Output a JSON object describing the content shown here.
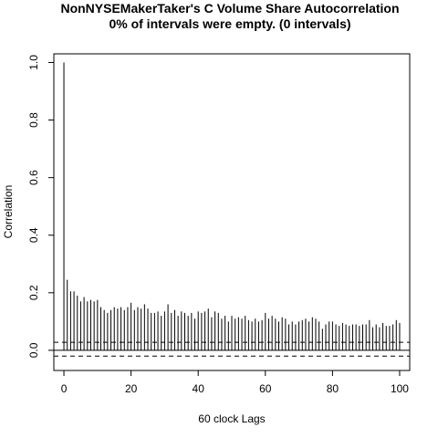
{
  "chart_data": {
    "type": "bar",
    "title": "NonNYSEMakerTaker's C Volume Share Autocorrelation",
    "subtitle": "0% of intervals were empty. (0 intervals)",
    "xlabel": "60 clock Lags",
    "ylabel": "Correlation",
    "xlim": [
      -3,
      103
    ],
    "ylim": [
      -0.07,
      1.03
    ],
    "x_ticks": [
      0,
      20,
      40,
      60,
      80,
      100
    ],
    "y_ticks": [
      0.0,
      0.2,
      0.4,
      0.6,
      0.8,
      1.0
    ],
    "x_tick_labels": [
      "0",
      "20",
      "40",
      "60",
      "80",
      "100"
    ],
    "y_tick_labels": [
      "0.0",
      "0.2",
      "0.4",
      "0.6",
      "0.8",
      "1.0"
    ],
    "confidence_band": [
      0.028,
      -0.02
    ],
    "lags": [
      0,
      1,
      2,
      3,
      4,
      5,
      6,
      7,
      8,
      9,
      10,
      11,
      12,
      13,
      14,
      15,
      16,
      17,
      18,
      19,
      20,
      21,
      22,
      23,
      24,
      25,
      26,
      27,
      28,
      29,
      30,
      31,
      32,
      33,
      34,
      35,
      36,
      37,
      38,
      39,
      40,
      41,
      42,
      43,
      44,
      45,
      46,
      47,
      48,
      49,
      50,
      51,
      52,
      53,
      54,
      55,
      56,
      57,
      58,
      59,
      60,
      61,
      62,
      63,
      64,
      65,
      66,
      67,
      68,
      69,
      70,
      71,
      72,
      73,
      74,
      75,
      76,
      77,
      78,
      79,
      80,
      81,
      82,
      83,
      84,
      85,
      86,
      87,
      88,
      89,
      90,
      91,
      92,
      93,
      94,
      95,
      96,
      97,
      98,
      99,
      100
    ],
    "values": [
      1.0,
      0.245,
      0.205,
      0.205,
      0.19,
      0.17,
      0.185,
      0.17,
      0.175,
      0.17,
      0.175,
      0.15,
      0.14,
      0.13,
      0.14,
      0.15,
      0.145,
      0.15,
      0.14,
      0.15,
      0.165,
      0.14,
      0.15,
      0.145,
      0.16,
      0.145,
      0.13,
      0.13,
      0.135,
      0.12,
      0.135,
      0.16,
      0.13,
      0.14,
      0.12,
      0.135,
      0.13,
      0.12,
      0.13,
      0.11,
      0.135,
      0.13,
      0.135,
      0.145,
      0.115,
      0.135,
      0.13,
      0.11,
      0.12,
      0.1,
      0.12,
      0.11,
      0.115,
      0.11,
      0.12,
      0.105,
      0.1,
      0.11,
      0.1,
      0.105,
      0.13,
      0.11,
      0.12,
      0.11,
      0.1,
      0.115,
      0.11,
      0.09,
      0.1,
      0.09,
      0.1,
      0.105,
      0.11,
      0.1,
      0.115,
      0.11,
      0.1,
      0.075,
      0.09,
      0.1,
      0.1,
      0.09,
      0.085,
      0.095,
      0.09,
      0.085,
      0.09,
      0.09,
      0.085,
      0.09,
      0.09,
      0.105,
      0.08,
      0.09,
      0.08,
      0.095,
      0.085,
      0.085,
      0.09,
      0.105,
      0.095
    ],
    "grid": false,
    "legend": "none"
  },
  "colors": {
    "line": "#000000",
    "background": "#ffffff"
  }
}
